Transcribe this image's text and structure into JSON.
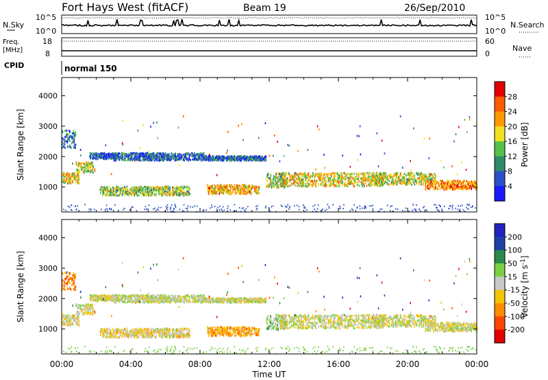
{
  "header": {
    "station": "Fort Hays West (fitACF)",
    "beam": "Beam 19",
    "date": "26/Sep/2010"
  },
  "noise_panel": {
    "left_label": "N.Sky",
    "left_top": "10^5",
    "left_bottom": "10^0",
    "right_label": "N.Search",
    "right_top": "10^5",
    "right_bottom": "10^0"
  },
  "freq_panel": {
    "left_label_1": "Freq.",
    "left_label_2": "[MHz]",
    "left_top": "18",
    "left_bottom": "8",
    "right_label": "Nave",
    "right_top": "60",
    "right_bottom": "0"
  },
  "cpid": {
    "label": "CPID",
    "value": "normal 150"
  },
  "colors": {
    "power": [
      "#1a1aff",
      "#2a50c8",
      "#2f8c6a",
      "#55c04a",
      "#f0e020",
      "#ff9a00",
      "#ff5a00",
      "#e00000"
    ],
    "velocity": [
      "#2222c0",
      "#1f40a8",
      "#2a8a4a",
      "#7ad040",
      "#c8c8c8",
      "#f4c400",
      "#ff8c00",
      "#ff4400",
      "#e00000"
    ]
  },
  "chart_data": [
    {
      "type": "heatmap",
      "panel": "power",
      "xlabel": "Time UT",
      "ylabel": "Slant Range [km]",
      "x_ticks": [
        "00:00",
        "04:00",
        "08:00",
        "12:00",
        "16:00",
        "20:00",
        "00:00"
      ],
      "x_range_hours": [
        0,
        24
      ],
      "y_ticks": [
        1000,
        2000,
        3000,
        4000
      ],
      "ylim": [
        180,
        4600
      ],
      "colorbar_label": "Power [dB]",
      "colorbar_ticks": [
        "4",
        "8",
        "12",
        "16",
        "20",
        "24",
        "28"
      ],
      "colorbar_range": [
        0,
        30
      ],
      "echo_bands": [
        {
          "t": [
            0.0,
            1.0
          ],
          "r": [
            1150,
            1500
          ],
          "v": 18
        },
        {
          "t": [
            0.8,
            1.8
          ],
          "r": [
            1500,
            1850
          ],
          "v": 16
        },
        {
          "t": [
            0.0,
            0.8
          ],
          "r": [
            2300,
            2900
          ],
          "v": 8
        },
        {
          "t": [
            1.6,
            3.2
          ],
          "r": [
            1950,
            2150
          ],
          "v": 6
        },
        {
          "t": [
            2.2,
            7.4
          ],
          "r": [
            750,
            1050
          ],
          "v": 14
        },
        {
          "t": [
            3.0,
            8.2
          ],
          "r": [
            1900,
            2150
          ],
          "v": 6
        },
        {
          "t": [
            8.4,
            11.4
          ],
          "r": [
            800,
            1100
          ],
          "v": 20
        },
        {
          "t": [
            8.2,
            11.8
          ],
          "r": [
            1900,
            2050
          ],
          "v": 6
        },
        {
          "t": [
            11.8,
            13.0
          ],
          "r": [
            1000,
            1500
          ],
          "v": 14
        },
        {
          "t": [
            12.6,
            18.6
          ],
          "r": [
            1050,
            1500
          ],
          "v": 17
        },
        {
          "t": [
            18.0,
            21.6
          ],
          "r": [
            1100,
            1500
          ],
          "v": 16
        },
        {
          "t": [
            21.0,
            24.0
          ],
          "r": [
            950,
            1250
          ],
          "v": 22
        }
      ]
    },
    {
      "type": "heatmap",
      "panel": "velocity",
      "xlabel": "Time UT",
      "ylabel": "Slant Range [km]",
      "x_ticks": [
        "00:00",
        "04:00",
        "08:00",
        "12:00",
        "16:00",
        "20:00",
        "00:00"
      ],
      "x_range_hours": [
        0,
        24
      ],
      "y_ticks": [
        1000,
        2000,
        3000,
        4000
      ],
      "ylim": [
        180,
        4600
      ],
      "colorbar_label": "Velocity [m s^-1]",
      "colorbar_ticks": [
        "200",
        "100",
        "50",
        "15",
        "-15",
        "-50",
        "-100",
        "-200"
      ],
      "colorbar_range": [
        -250,
        250
      ],
      "echo_bands": [
        {
          "t": [
            0.0,
            1.0
          ],
          "r": [
            1150,
            1500
          ],
          "v": -20
        },
        {
          "t": [
            0.8,
            1.8
          ],
          "r": [
            1500,
            1850
          ],
          "v": 0
        },
        {
          "t": [
            0.0,
            0.8
          ],
          "r": [
            2300,
            2900
          ],
          "v": -120
        },
        {
          "t": [
            1.6,
            3.2
          ],
          "r": [
            1950,
            2150
          ],
          "v": -10
        },
        {
          "t": [
            2.2,
            7.4
          ],
          "r": [
            750,
            1050
          ],
          "v": -30
        },
        {
          "t": [
            3.0,
            8.2
          ],
          "r": [
            1900,
            2150
          ],
          "v": 0
        },
        {
          "t": [
            8.4,
            11.4
          ],
          "r": [
            800,
            1100
          ],
          "v": -80
        },
        {
          "t": [
            8.2,
            11.8
          ],
          "r": [
            1900,
            2050
          ],
          "v": -10
        },
        {
          "t": [
            11.8,
            13.0
          ],
          "r": [
            1000,
            1500
          ],
          "v": 40
        },
        {
          "t": [
            12.6,
            18.6
          ],
          "r": [
            1050,
            1500
          ],
          "v": -10
        },
        {
          "t": [
            18.0,
            21.6
          ],
          "r": [
            1100,
            1500
          ],
          "v": 0
        },
        {
          "t": [
            21.0,
            24.0
          ],
          "r": [
            950,
            1250
          ],
          "v": -10
        }
      ]
    }
  ]
}
